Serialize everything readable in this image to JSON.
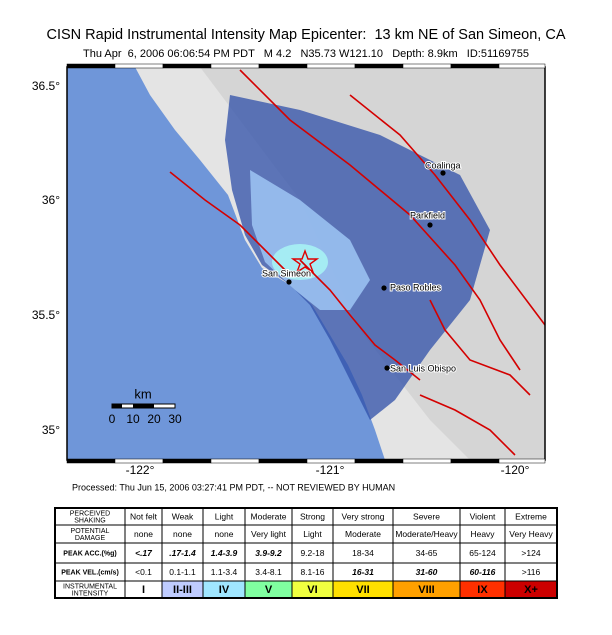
{
  "header": {
    "title": "CISN Rapid Instrumental Intensity Map Epicenter:  13 km NE of San Simeon, CA",
    "subtitle": "Thu Apr  6, 2006 06:06:54 PM PDT   M 4.2   N35.73 W121.10   Depth: 8.9km   ID:51169755"
  },
  "map": {
    "lat_labels": [
      "36.5°",
      "36°",
      "35.5°",
      "35°"
    ],
    "lon_labels": [
      "-122°",
      "-121°",
      "-120°"
    ],
    "cities": [
      "Coalinga",
      "Parkfield",
      "Paso Robles",
      "San Luis Obispo",
      "San Simeon"
    ],
    "scale": {
      "unit": "km",
      "labels": [
        "0",
        "10",
        "20",
        "30"
      ]
    }
  },
  "footer": {
    "processed": "Processed: Thu Jun 15, 2006 03:27:41 PM PDT, -- NOT REVIEWED BY HUMAN"
  },
  "table": {
    "rows": [
      [
        "PERCEIVED SHAKING",
        "Not felt",
        "Weak",
        "Light",
        "Moderate",
        "Strong",
        "Very strong",
        "Severe",
        "Violent",
        "Extreme"
      ],
      [
        "POTENTIAL DAMAGE",
        "none",
        "none",
        "none",
        "Very light",
        "Light",
        "Moderate",
        "Moderate/Heavy",
        "Heavy",
        "Very Heavy"
      ],
      [
        "PEAK ACC.(%g)",
        "<.17",
        ".17-1.4",
        "1.4-3.9",
        "3.9-9.2",
        "9.2-18",
        "18-34",
        "34-65",
        "65-124",
        ">124"
      ],
      [
        "PEAK VEL.(cm/s)",
        "<0.1",
        "0.1-1.1",
        "1.1-3.4",
        "3.4-8.1",
        "8.1-16",
        "16-31",
        "31-60",
        "60-116",
        ">116"
      ],
      [
        "INSTRUMENTAL INTENSITY",
        "I",
        "II-III",
        "IV",
        "V",
        "VI",
        "VII",
        "VIII",
        "IX",
        "X+"
      ]
    ]
  }
}
